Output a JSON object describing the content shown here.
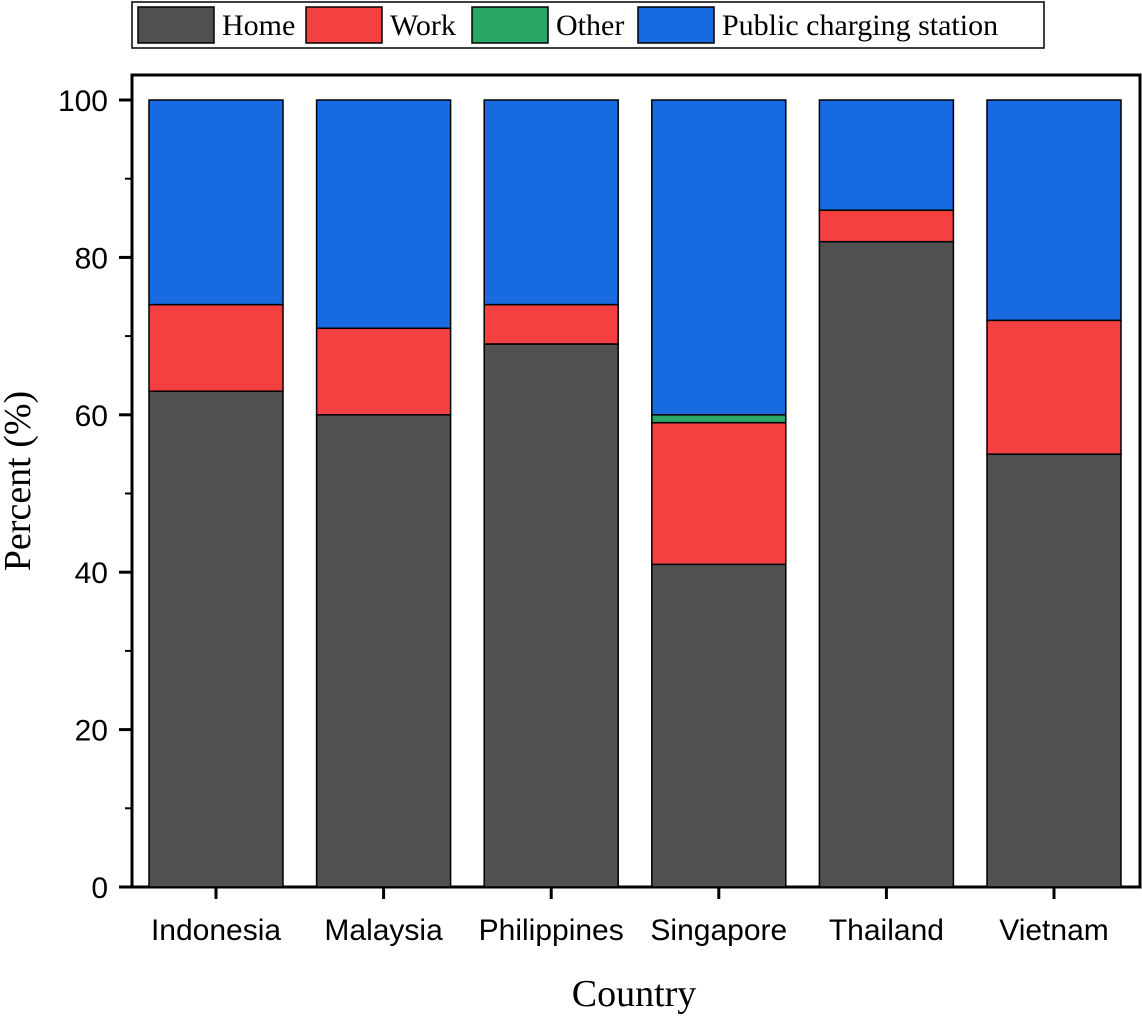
{
  "chart_data": {
    "type": "bar",
    "stacked": true,
    "categories": [
      "Indonesia",
      "Malaysia",
      "Philippines",
      "Singapore",
      "Thailand",
      "Vietnam"
    ],
    "series": [
      {
        "name": "Home",
        "color": "#505050",
        "values": [
          63,
          60,
          69,
          41,
          82,
          55
        ]
      },
      {
        "name": "Work",
        "color": "#f44040",
        "values": [
          11,
          11,
          5,
          18,
          4,
          17
        ]
      },
      {
        "name": "Other",
        "color": "#2aa566",
        "values": [
          0,
          0,
          0,
          1,
          0,
          0
        ]
      },
      {
        "name": "Public charging station",
        "color": "#186ae0",
        "values": [
          26,
          29,
          26,
          40,
          14,
          28
        ]
      }
    ],
    "xlabel": "Country",
    "ylabel": "Percent (%)",
    "ylim": [
      0,
      100
    ],
    "yticks": [
      0,
      20,
      40,
      60,
      80,
      100
    ],
    "grid": false,
    "legend_position": "top"
  }
}
